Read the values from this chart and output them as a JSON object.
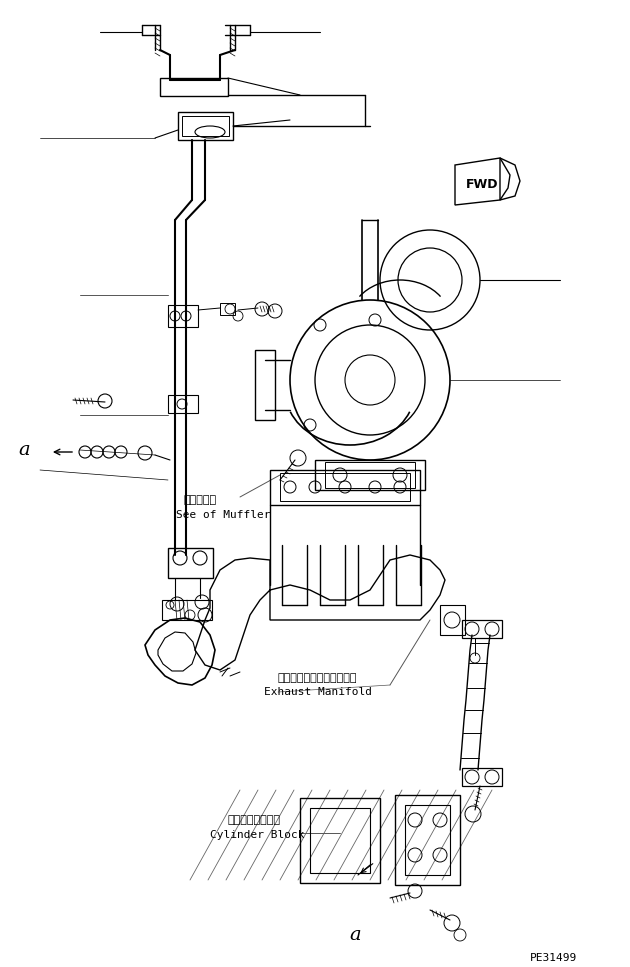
{
  "background_color": "#ffffff",
  "line_color": "#000000",
  "fig_width": 6.3,
  "fig_height": 9.67,
  "dpi": 100,
  "fwd_label": "FWD",
  "label_a_left": "a",
  "label_a_bottom": "a",
  "text_muffler_jp": "マフラ参照",
  "text_muffler_en": "See of Muffler",
  "text_exhaust_jp": "エキゾーストマニホールド",
  "text_exhaust_en": "Exhaust Manifold",
  "text_cylinder_jp": "シリンダブロック",
  "text_cylinder_en": "Cylinder Block",
  "text_partnum": "PE31499"
}
